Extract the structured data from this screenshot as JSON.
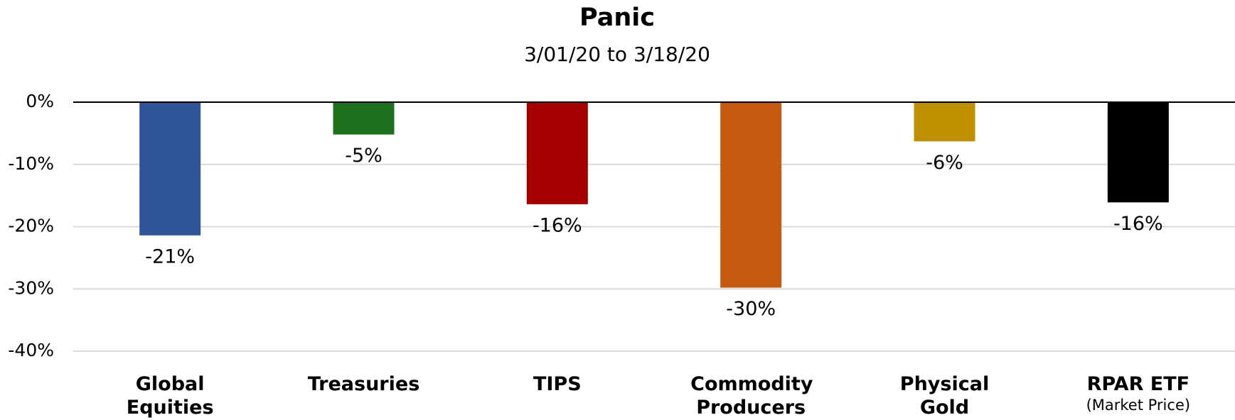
{
  "chart_data": {
    "type": "bar",
    "title": "Panic",
    "subtitle": "3/01/20 to 3/18/20",
    "categories": [
      "Global Equities",
      "Treasuries",
      "TIPS",
      "Commodity Producers",
      "Physical Gold",
      "RPAR ETF"
    ],
    "category_notes": [
      null,
      null,
      null,
      null,
      null,
      "(Market Price)"
    ],
    "values": [
      -21.4,
      -5.2,
      -16.4,
      -29.8,
      -6.3,
      -16.1
    ],
    "value_labels": [
      "-21%",
      "-5%",
      "-16%",
      "-30%",
      "-6%",
      "-16%"
    ],
    "colors": [
      "#2f5597",
      "#1e6f1e",
      "#a50000",
      "#c55a11",
      "#bf9000",
      "#000000"
    ],
    "ylim": [
      -40,
      0
    ],
    "yticks": [
      {
        "value": 0,
        "label": "0%"
      },
      {
        "value": -10,
        "label": "-10%"
      },
      {
        "value": -20,
        "label": "-20%"
      },
      {
        "value": -30,
        "label": "-30%"
      },
      {
        "value": -40,
        "label": "-40%"
      }
    ],
    "grid": true
  }
}
